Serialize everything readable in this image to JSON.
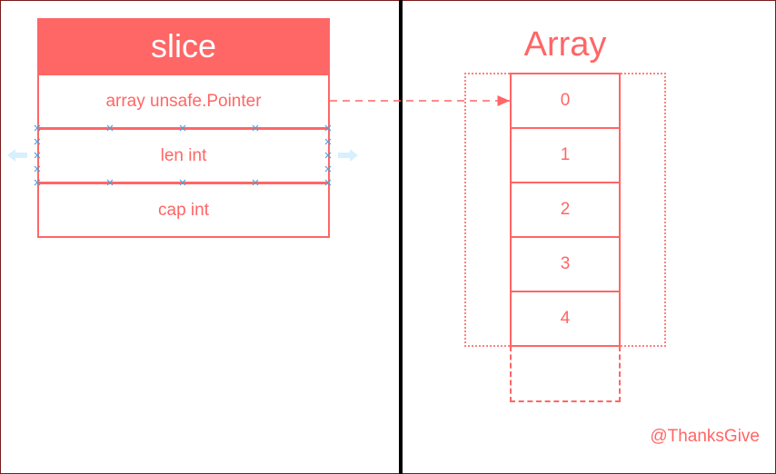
{
  "slice": {
    "title": "slice",
    "fields": [
      "array unsafe.Pointer",
      "len int",
      "cap int"
    ]
  },
  "array": {
    "title": "Array",
    "cells": [
      "0",
      "1",
      "2",
      "3",
      "4"
    ]
  },
  "watermark": "@ThanksGive",
  "colors": {
    "accent": "#ff6666",
    "divider": "#000000",
    "selection_handle": "#5b9bd5",
    "selection_arrow": "#d6f0ff"
  }
}
